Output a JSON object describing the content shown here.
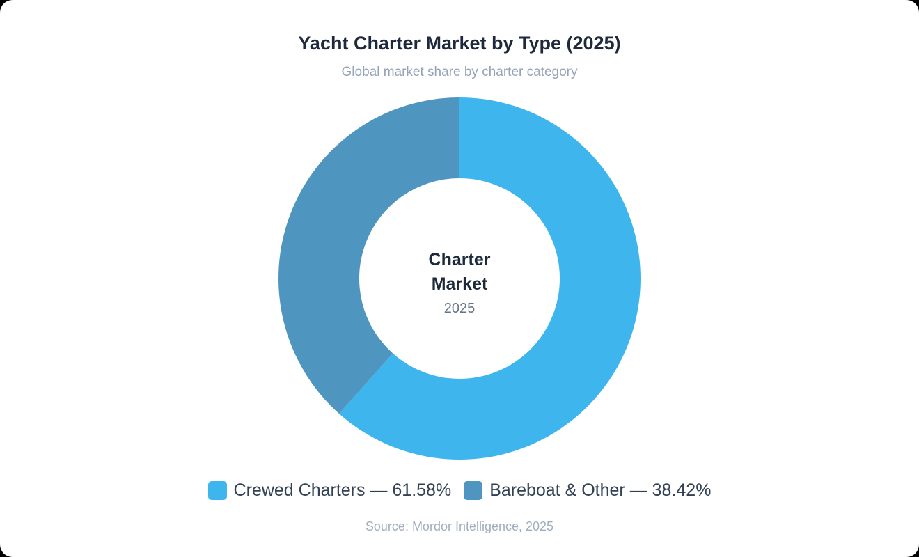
{
  "header": {
    "title": "Yacht Charter Market by Type (2025)",
    "subtitle": "Global market share by charter category"
  },
  "center": {
    "line1": "Charter",
    "line2": "Market",
    "year": "2025"
  },
  "legend": [
    {
      "label": "Crewed Charters — 61.58%",
      "color": "#3fb5ed"
    },
    {
      "label": "Bareboat & Other — 38.42%",
      "color": "#4e95bf"
    }
  ],
  "source": "Source: Mordor Intelligence, 2025",
  "chart_data": {
    "type": "pie",
    "variant": "donut",
    "title": "Yacht Charter Market by Type (2025)",
    "subtitle": "Global market share by charter category",
    "categories": [
      "Crewed Charters",
      "Bareboat & Other"
    ],
    "values": [
      61.58,
      38.42
    ],
    "unit": "%",
    "colors": [
      "#3fb5ed",
      "#4e95bf"
    ],
    "center_text": [
      "Charter Market",
      "2025"
    ],
    "start_angle": "12 o'clock, clockwise",
    "legend_position": "bottom",
    "source": "Source: Mordor Intelligence, 2025"
  }
}
